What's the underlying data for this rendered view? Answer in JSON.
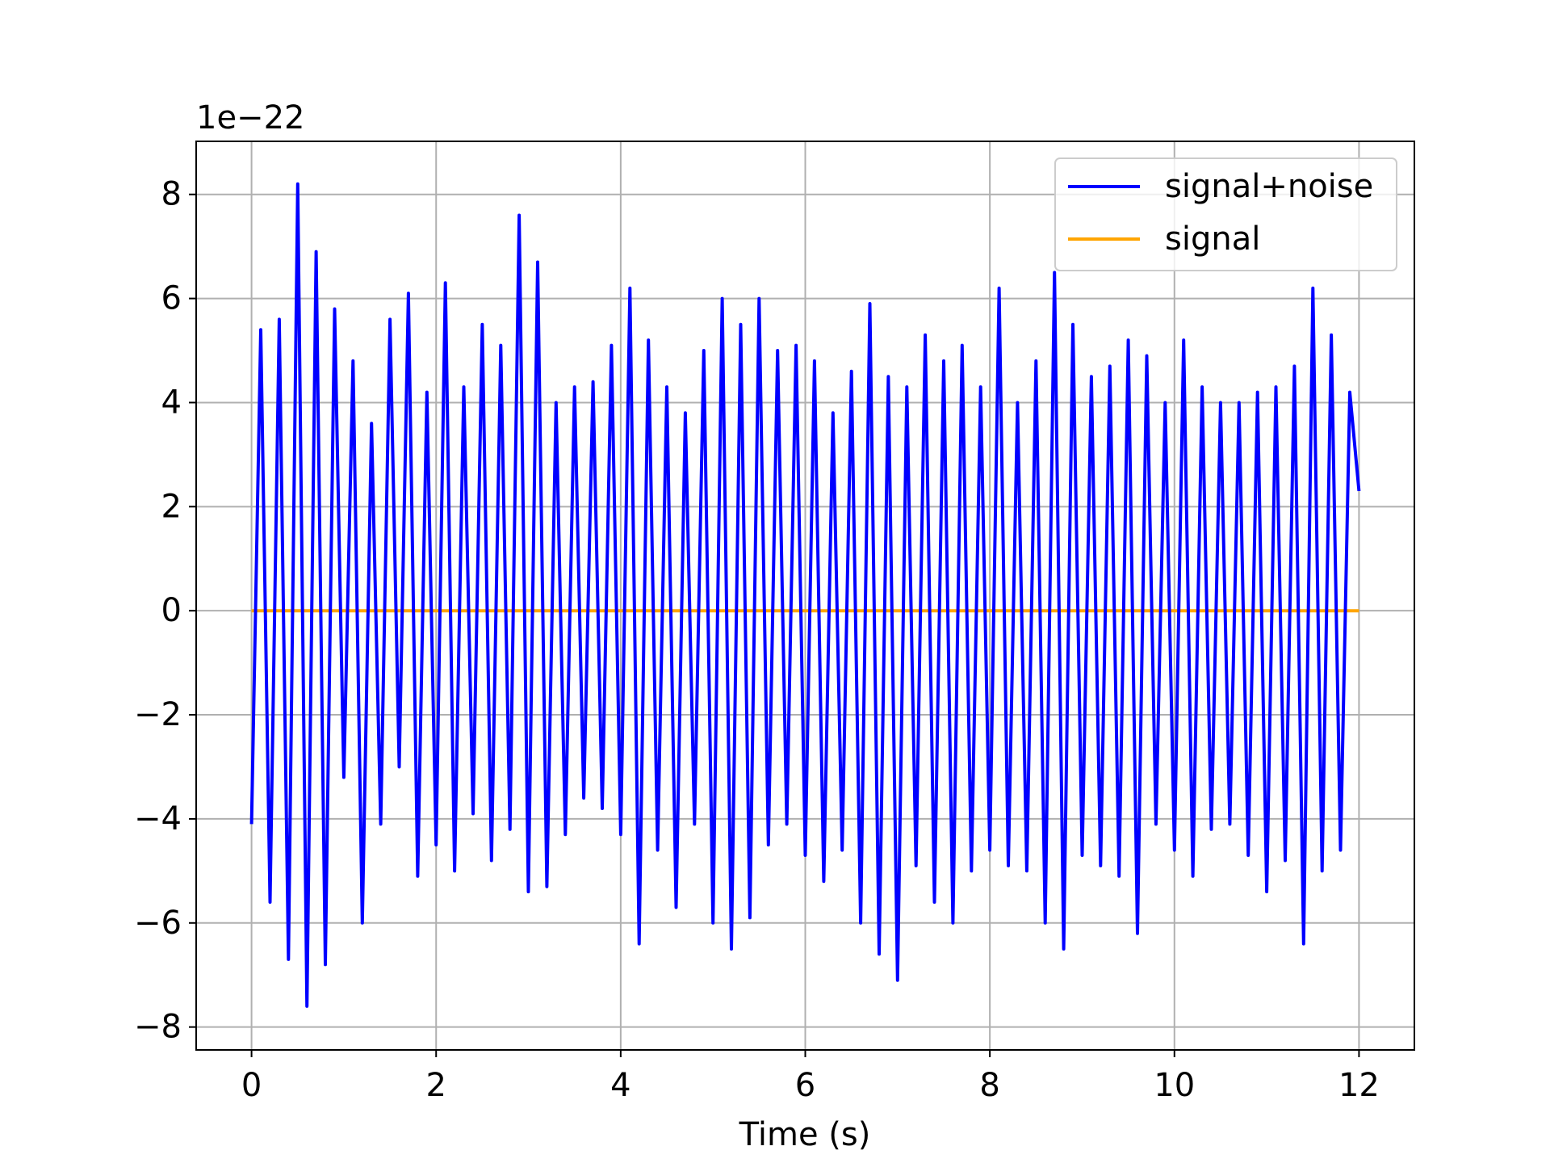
{
  "chart_data": {
    "type": "line",
    "offset_text": "1e−22",
    "xlabel": "Time (s)",
    "x": [
      0.0,
      0.1,
      0.2,
      0.3,
      0.4,
      0.5,
      0.6,
      0.7,
      0.8,
      0.9,
      1.0,
      1.1,
      1.2,
      1.3,
      1.4,
      1.5,
      1.6,
      1.7,
      1.8,
      1.9,
      2.0,
      2.1,
      2.2,
      2.3,
      2.4,
      2.5,
      2.6,
      2.7,
      2.8,
      2.9,
      3.0,
      3.1,
      3.2,
      3.3,
      3.4,
      3.5,
      3.6,
      3.7,
      3.8,
      3.9,
      4.0,
      4.1,
      4.2,
      4.3,
      4.4,
      4.5,
      4.6,
      4.7,
      4.8,
      4.9,
      5.0,
      5.1,
      5.2,
      5.3,
      5.4,
      5.5,
      5.6,
      5.7,
      5.8,
      5.9,
      6.0,
      6.1,
      6.2,
      6.3,
      6.4,
      6.5,
      6.6,
      6.7,
      6.8,
      6.9,
      7.0,
      7.1,
      7.2,
      7.3,
      7.4,
      7.5,
      7.6,
      7.7,
      7.8,
      7.9,
      8.0,
      8.1,
      8.2,
      8.3,
      8.4,
      8.5,
      8.6,
      8.7,
      8.8,
      8.9,
      9.0,
      9.1,
      9.2,
      9.3,
      9.4,
      9.5,
      9.6,
      9.7,
      9.8,
      9.9,
      10.0,
      10.1,
      10.2,
      10.3,
      10.4,
      10.5,
      10.6,
      10.7,
      10.8,
      10.9,
      11.0,
      11.1,
      11.2,
      11.3,
      11.4,
      11.5,
      11.6,
      11.7,
      11.8,
      11.9,
      12.0
    ],
    "series": [
      {
        "name": "signal+noise",
        "color": "#0000ff",
        "values": [
          -4.1,
          5.4,
          -5.6,
          5.6,
          -6.7,
          8.2,
          -7.6,
          6.9,
          -6.8,
          5.8,
          -3.2,
          4.8,
          -6.0,
          3.6,
          -4.1,
          5.6,
          -3.0,
          6.1,
          -5.1,
          4.2,
          -4.5,
          6.3,
          -5.0,
          4.3,
          -3.9,
          5.5,
          -4.8,
          5.1,
          -4.2,
          7.6,
          -5.4,
          6.7,
          -5.3,
          4.0,
          -4.3,
          4.3,
          -3.6,
          4.4,
          -3.8,
          5.1,
          -4.3,
          6.2,
          -6.4,
          5.2,
          -4.6,
          4.3,
          -5.7,
          3.8,
          -4.1,
          5.0,
          -6.0,
          6.0,
          -6.5,
          5.5,
          -5.9,
          6.0,
          -4.5,
          5.0,
          -4.1,
          5.1,
          -4.7,
          4.8,
          -5.2,
          3.8,
          -4.6,
          4.6,
          -6.0,
          5.9,
          -6.6,
          4.5,
          -7.1,
          4.3,
          -4.9,
          5.3,
          -5.6,
          4.8,
          -6.0,
          5.1,
          -5.0,
          4.3,
          -4.6,
          6.2,
          -4.9,
          4.0,
          -5.0,
          4.8,
          -6.0,
          6.5,
          -6.5,
          5.5,
          -4.7,
          4.5,
          -4.9,
          4.7,
          -5.1,
          5.2,
          -6.2,
          4.9,
          -4.1,
          4.0,
          -4.6,
          5.2,
          -5.1,
          4.3,
          -4.2,
          4.0,
          -4.1,
          4.0,
          -4.7,
          4.2,
          -5.4,
          4.3,
          -4.8,
          4.7,
          -6.4,
          6.2,
          -5.0,
          5.3,
          -4.6,
          4.2,
          2.3
        ]
      },
      {
        "name": "signal",
        "color": "#ffa500",
        "values": [
          0,
          0,
          0,
          0,
          0,
          0,
          0,
          0,
          0,
          0,
          0,
          0,
          0,
          0,
          0,
          0,
          0,
          0,
          0,
          0,
          0,
          0,
          0,
          0,
          0,
          0,
          0,
          0,
          0,
          0,
          0,
          0,
          0,
          0,
          0,
          0,
          0,
          0,
          0,
          0,
          0,
          0,
          0,
          0,
          0,
          0,
          0,
          0,
          0,
          0,
          0,
          0,
          0,
          0,
          0,
          0,
          0,
          0,
          0,
          0,
          0,
          0,
          0,
          0,
          0,
          0,
          0,
          0,
          0,
          0,
          0,
          0,
          0,
          0,
          0,
          0,
          0,
          0,
          0,
          0,
          0,
          0,
          0,
          0,
          0,
          0,
          0,
          0,
          0,
          0,
          0,
          0,
          0,
          0,
          0,
          0,
          0,
          0,
          0,
          0,
          0,
          0,
          0,
          0,
          0,
          0,
          0,
          0,
          0,
          0,
          0,
          0,
          0,
          0,
          0,
          0,
          0,
          0,
          0,
          0,
          0
        ]
      }
    ],
    "xlim": [
      -0.6,
      12.6
    ],
    "ylim": [
      -8.44,
      9.02
    ],
    "xticks": [
      0,
      2,
      4,
      6,
      8,
      10,
      12
    ],
    "yticks": [
      {
        "value": -8,
        "label": "−8"
      },
      {
        "value": -6,
        "label": "−6"
      },
      {
        "value": -4,
        "label": "−4"
      },
      {
        "value": -2,
        "label": "−2"
      },
      0,
      2,
      4,
      6,
      8
    ],
    "grid": true,
    "legend": "upper right"
  }
}
